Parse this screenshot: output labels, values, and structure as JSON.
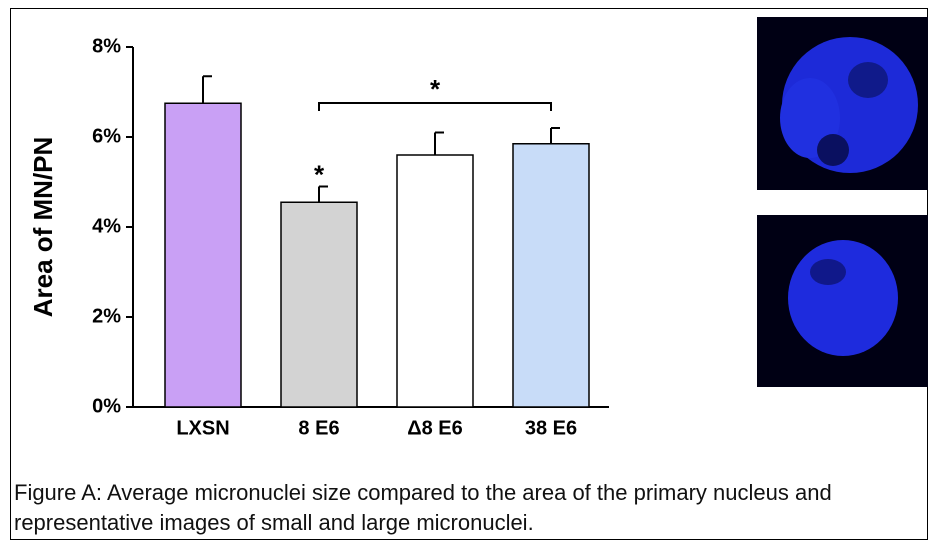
{
  "chart_data": {
    "type": "bar",
    "ylabel": "Area of MN/PN",
    "categories": [
      "LXSN",
      "8 E6",
      "Δ8 E6",
      "38 E6"
    ],
    "values": [
      6.75,
      4.55,
      5.6,
      5.85
    ],
    "errors": [
      0.6,
      0.35,
      0.5,
      0.35
    ],
    "colors": [
      "#c9a0f5",
      "#d3d3d3",
      "#ffffff",
      "#c8dcf8"
    ],
    "ylim": [
      0,
      8
    ],
    "yticks": [
      {
        "value": 0,
        "label": "0%"
      },
      {
        "value": 2,
        "label": "2%"
      },
      {
        "value": 4,
        "label": "4%"
      },
      {
        "value": 6,
        "label": "6%"
      },
      {
        "value": 8,
        "label": "8%"
      }
    ],
    "annotations": [
      "*",
      "*"
    ],
    "caption": "Figure A: Average micronuclei size compared to the area of the primary nucleus and representative images of small and large micronuclei."
  }
}
